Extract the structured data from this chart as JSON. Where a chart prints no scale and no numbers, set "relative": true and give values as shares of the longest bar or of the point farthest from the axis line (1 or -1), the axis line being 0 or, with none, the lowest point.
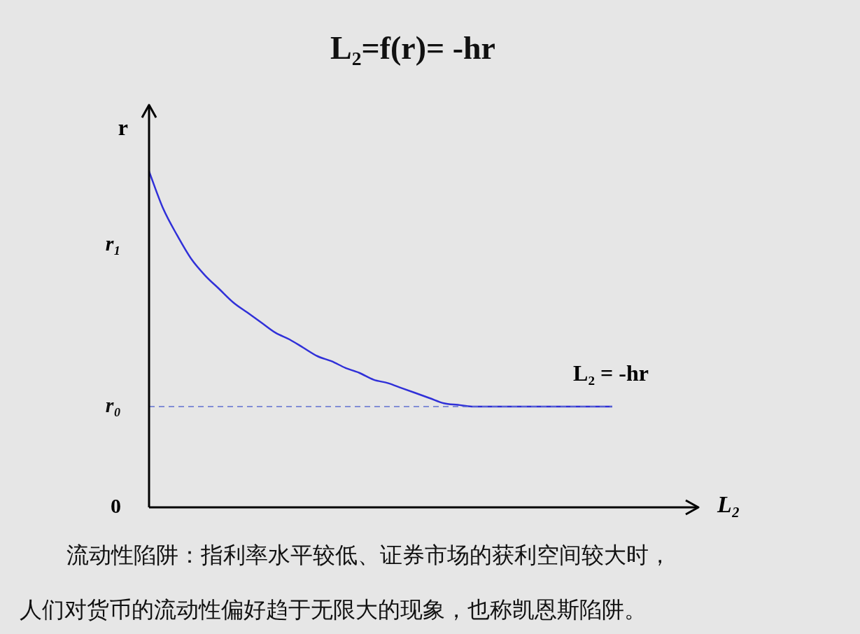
{
  "chart_data": {
    "type": "line",
    "relative": true,
    "title": "L₂=f(r)= -hr",
    "xlabel": "L₂",
    "ylabel": "r",
    "categories": [
      null,
      null,
      null,
      null,
      null,
      null,
      null,
      null,
      null,
      null,
      null,
      null,
      null,
      null,
      null,
      null,
      null,
      null,
      null,
      null,
      null,
      null,
      null,
      null,
      null,
      null,
      null,
      null,
      null,
      null,
      null,
      null,
      null,
      null
    ],
    "series": [
      {
        "color": "#3030d8",
        "values": [
          1.0,
          0.89,
          0.81,
          0.74,
          0.69,
          0.65,
          0.61,
          0.58,
          0.55,
          0.52,
          0.5,
          0.475,
          0.45,
          0.435,
          0.415,
          0.4,
          0.38,
          0.37,
          0.355,
          0.34,
          0.325,
          0.31,
          0.305,
          0.3,
          0.3,
          0.3,
          0.3,
          0.3,
          0.3,
          0.3,
          0.3,
          0.3,
          0.3,
          0.3
        ]
      }
    ],
    "ref_lines": [
      {
        "axis": "y",
        "value": 0.3,
        "label": "r₀",
        "color": "#6070d0",
        "line_style": "dashed"
      }
    ],
    "annotations": [
      "r₁",
      "0",
      "L₂ = -hr",
      "流动性陷阱：指利率水平较低、证券市场的获利空间较大时，",
      "人们对货币的流动性偏好趋于无限大的现象，也称凯恩斯陷阱。"
    ],
    "grid": false,
    "legend": false,
    "marker": "none",
    "line_style": "solid"
  }
}
